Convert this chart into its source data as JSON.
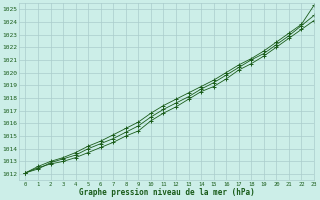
{
  "title": "Graphe pression niveau de la mer (hPa)",
  "bg_color": "#cceee8",
  "grid_color": "#aacccc",
  "line_color": "#1a5c1a",
  "marker_color": "#1a5c1a",
  "text_color": "#1a5c1a",
  "xlim": [
    -0.5,
    23
  ],
  "ylim": [
    1011.5,
    1025.5
  ],
  "xticks": [
    0,
    1,
    2,
    3,
    4,
    5,
    6,
    7,
    8,
    9,
    10,
    11,
    12,
    13,
    14,
    15,
    16,
    17,
    18,
    19,
    20,
    21,
    22,
    23
  ],
  "yticks": [
    1012,
    1013,
    1014,
    1015,
    1016,
    1017,
    1018,
    1019,
    1020,
    1021,
    1022,
    1023,
    1024,
    1025
  ],
  "series": [
    [
      1012.1,
      1012.5,
      1012.8,
      1013.0,
      1013.3,
      1013.7,
      1014.1,
      1014.5,
      1015.0,
      1015.4,
      1016.2,
      1016.8,
      1017.3,
      1017.9,
      1018.5,
      1018.9,
      1019.5,
      1020.2,
      1020.7,
      1021.3,
      1022.0,
      1022.7,
      1023.4,
      1024.1
    ],
    [
      1012.1,
      1012.4,
      1012.9,
      1013.2,
      1013.5,
      1014.0,
      1014.4,
      1014.8,
      1015.3,
      1015.8,
      1016.5,
      1017.1,
      1017.6,
      1018.1,
      1018.7,
      1019.2,
      1019.8,
      1020.4,
      1021.0,
      1021.5,
      1022.2,
      1022.9,
      1023.7,
      1024.5
    ],
    [
      1012.1,
      1012.6,
      1013.0,
      1013.3,
      1013.7,
      1014.2,
      1014.6,
      1015.1,
      1015.6,
      1016.1,
      1016.8,
      1017.4,
      1017.9,
      1018.4,
      1018.9,
      1019.4,
      1020.0,
      1020.6,
      1021.1,
      1021.7,
      1022.4,
      1023.1,
      1023.8,
      1025.3
    ]
  ]
}
